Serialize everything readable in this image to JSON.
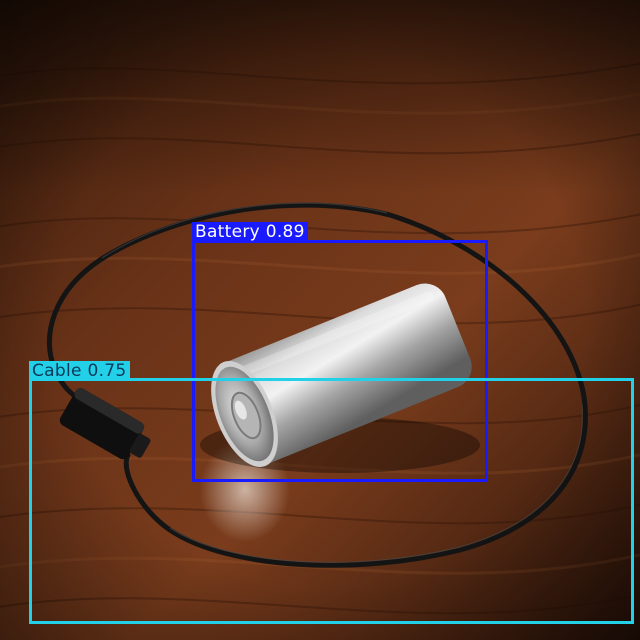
{
  "detections": [
    {
      "id": "battery",
      "label": "Battery",
      "score": "0.89",
      "caption": "Battery 0.89",
      "color": "#1a1aff"
    },
    {
      "id": "cable",
      "label": "Cable",
      "score": "0.75",
      "caption": "Cable 0.75",
      "color": "#22d0e8"
    }
  ],
  "colors": {
    "wood_dark": "#2a1509",
    "wood_mid": "#6a3318",
    "wood_light": "#9a5a30",
    "battery_metal": "#b8b8b8",
    "cable": "#151515"
  }
}
